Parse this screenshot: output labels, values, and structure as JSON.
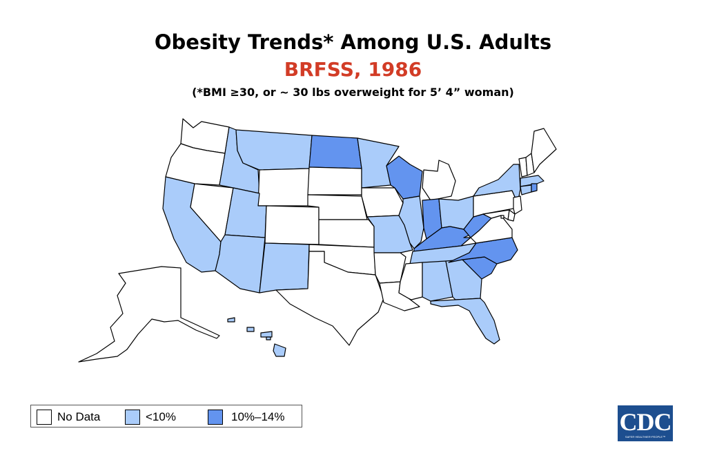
{
  "header": {
    "title": "Obesity Trends* Among U.S. Adults",
    "subtitle": "BRFSS, 1986",
    "note": "(*BMI ≥30, or ~ 30 lbs overweight for 5’ 4” woman)"
  },
  "colors": {
    "subtitle": "#d23c26",
    "no_data": "#ffffff",
    "lt10": "#aaccfa",
    "10to14": "#6394ef",
    "outline": "#000000"
  },
  "legend": [
    {
      "label": "No Data",
      "category": "no_data"
    },
    {
      "label": "<10%",
      "category": "lt10"
    },
    {
      "label": "10%–14%",
      "category": "10to14"
    }
  ],
  "states": {
    "WA": "no_data",
    "OR": "no_data",
    "CA": "lt10",
    "NV": "no_data",
    "ID": "lt10",
    "MT": "lt10",
    "WY": "no_data",
    "UT": "lt10",
    "AZ": "lt10",
    "CO": "no_data",
    "NM": "lt10",
    "ND": "10to14",
    "SD": "no_data",
    "NE": "no_data",
    "KS": "no_data",
    "OK": "no_data",
    "TX": "no_data",
    "MN": "lt10",
    "IA": "no_data",
    "MO": "lt10",
    "AR": "no_data",
    "LA": "no_data",
    "WI": "10to14",
    "IL": "lt10",
    "MS": "no_data",
    "MI": "no_data",
    "IN": "10to14",
    "OH": "lt10",
    "KY": "10to14",
    "TN": "lt10",
    "AL": "lt10",
    "GA": "lt10",
    "FL": "lt10",
    "SC": "10to14",
    "NC": "10to14",
    "VA": "no_data",
    "WV": "10to14",
    "PA": "no_data",
    "NY": "lt10",
    "VT": "no_data",
    "NH": "no_data",
    "ME": "no_data",
    "MA": "lt10",
    "RI": "10to14",
    "CT": "lt10",
    "NJ": "no_data",
    "DE": "no_data",
    "MD": "no_data",
    "DC": "no_data",
    "AK": "no_data",
    "HI": "lt10"
  },
  "logo": {
    "text": "CDC",
    "tagline": "SAFER·HEALTHIER·PEOPLE™"
  }
}
